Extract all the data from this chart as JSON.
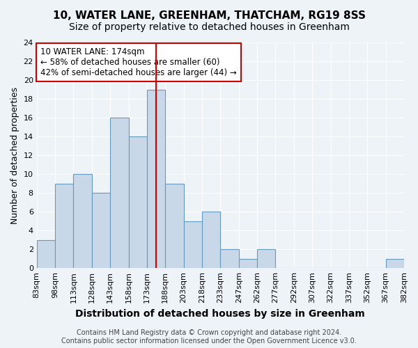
{
  "title": "10, WATER LANE, GREENHAM, THATCHAM, RG19 8SS",
  "subtitle": "Size of property relative to detached houses in Greenham",
  "xlabel": "Distribution of detached houses by size in Greenham",
  "ylabel": "Number of detached properties",
  "bin_labels": [
    "83sqm",
    "98sqm",
    "113sqm",
    "128sqm",
    "143sqm",
    "158sqm",
    "173sqm",
    "188sqm",
    "203sqm",
    "218sqm",
    "233sqm",
    "247sqm",
    "262sqm",
    "277sqm",
    "292sqm",
    "307sqm",
    "322sqm",
    "337sqm",
    "352sqm",
    "367sqm",
    "382sqm"
  ],
  "bar_heights": [
    3,
    9,
    10,
    8,
    16,
    14,
    19,
    9,
    5,
    6,
    2,
    1,
    2,
    0,
    0,
    0,
    0,
    0,
    0,
    1
  ],
  "bar_color": "#c8d8e8",
  "bar_edgecolor": "#6699bb",
  "vline_x": 6.5,
  "vline_color": "#cc0000",
  "ylim": [
    0,
    24
  ],
  "yticks": [
    0,
    2,
    4,
    6,
    8,
    10,
    12,
    14,
    16,
    18,
    20,
    22,
    24
  ],
  "annotation_title": "10 WATER LANE: 174sqm",
  "annotation_line1": "← 58% of detached houses are smaller (60)",
  "annotation_line2": "42% of semi-detached houses are larger (44) →",
  "annotation_box_color": "#ffffff",
  "annotation_box_edgecolor": "#cc0000",
  "footer_line1": "Contains HM Land Registry data © Crown copyright and database right 2024.",
  "footer_line2": "Contains public sector information licensed under the Open Government Licence v3.0.",
  "background_color": "#eef3f8",
  "plot_bg_color": "#eef3f8",
  "title_fontsize": 11,
  "subtitle_fontsize": 10,
  "axis_label_fontsize": 9,
  "tick_fontsize": 8,
  "footer_fontsize": 7
}
